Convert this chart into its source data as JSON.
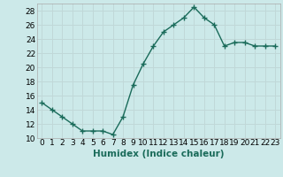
{
  "x": [
    0,
    1,
    2,
    3,
    4,
    5,
    6,
    7,
    8,
    9,
    10,
    11,
    12,
    13,
    14,
    15,
    16,
    17,
    18,
    19,
    20,
    21,
    22,
    23
  ],
  "y": [
    15,
    14,
    13,
    12,
    11,
    11,
    11,
    10.5,
    13,
    17.5,
    20.5,
    23,
    25,
    26,
    27,
    28.5,
    27,
    26,
    23,
    23.5,
    23.5,
    23,
    23,
    23
  ],
  "line_color": "#1a6b5a",
  "marker": "+",
  "background_color": "#cce9e9",
  "grid_color": "#c0d8d8",
  "title": "",
  "xlabel": "Humidex (Indice chaleur)",
  "ylabel": "",
  "ylim": [
    10,
    29
  ],
  "xlim": [
    -0.5,
    23.5
  ],
  "yticks": [
    10,
    12,
    14,
    16,
    18,
    20,
    22,
    24,
    26,
    28
  ],
  "xtick_labels": [
    "0",
    "1",
    "2",
    "3",
    "4",
    "5",
    "6",
    "7",
    "8",
    "9",
    "10",
    "11",
    "12",
    "13",
    "14",
    "15",
    "16",
    "17",
    "18",
    "19",
    "20",
    "21",
    "22",
    "23"
  ],
  "tick_fontsize": 6.5,
  "xlabel_fontsize": 7.5,
  "linewidth": 1.0,
  "markersize": 4
}
